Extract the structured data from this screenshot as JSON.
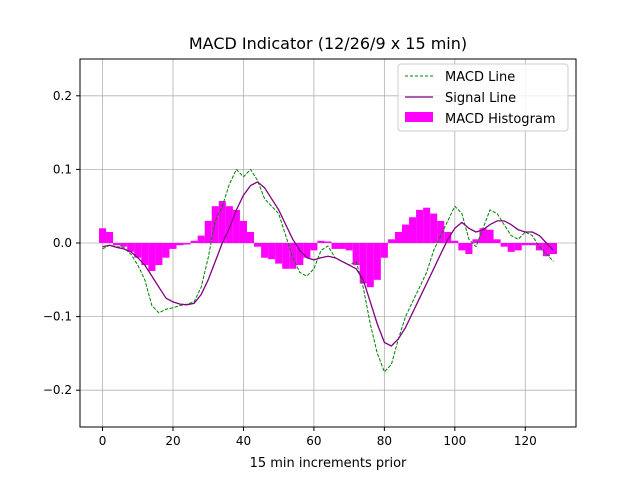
{
  "chart_data": {
    "type": "line",
    "title": "MACD Indicator (12/26/9 x 15 min)",
    "xlabel": "15 min increments prior",
    "ylabel": "",
    "xlim": [
      -6.4,
      134.4
    ],
    "ylim": [
      -0.25,
      0.25
    ],
    "xticks": [
      0,
      20,
      40,
      60,
      80,
      100,
      120
    ],
    "xtick_labels": [
      "0",
      "20",
      "40",
      "60",
      "80",
      "100",
      "120"
    ],
    "yticks": [
      -0.2,
      -0.1,
      0.0,
      0.1,
      0.2
    ],
    "ytick_labels": [
      "−0.2",
      "−0.1",
      "0.0",
      "0.1",
      "0.2"
    ],
    "grid": true,
    "legend_placement": "top-right",
    "x": [
      0,
      2,
      4,
      6,
      8,
      10,
      12,
      14,
      16,
      18,
      20,
      22,
      24,
      26,
      28,
      30,
      32,
      34,
      36,
      38,
      40,
      42,
      44,
      46,
      48,
      50,
      52,
      54,
      56,
      58,
      60,
      62,
      64,
      66,
      68,
      70,
      72,
      74,
      76,
      78,
      80,
      82,
      84,
      86,
      88,
      90,
      92,
      94,
      96,
      98,
      100,
      102,
      104,
      106,
      108,
      110,
      112,
      114,
      116,
      118,
      120,
      122,
      124,
      126,
      128
    ],
    "series": [
      {
        "name": "MACD Line",
        "type": "line",
        "style": "dashed",
        "color": "#008000",
        "values": [
          -0.008,
          -0.003,
          -0.005,
          -0.006,
          -0.015,
          -0.03,
          -0.05,
          -0.085,
          -0.095,
          -0.09,
          -0.088,
          -0.085,
          -0.083,
          -0.08,
          -0.06,
          -0.02,
          0.03,
          0.05,
          0.08,
          0.1,
          0.09,
          0.1,
          0.085,
          0.06,
          0.05,
          0.04,
          0.01,
          -0.02,
          -0.04,
          -0.045,
          -0.035,
          -0.01,
          -0.004,
          -0.02,
          -0.025,
          -0.03,
          -0.025,
          -0.06,
          -0.11,
          -0.15,
          -0.175,
          -0.165,
          -0.13,
          -0.1,
          -0.08,
          -0.06,
          -0.04,
          -0.01,
          0.01,
          0.03,
          0.05,
          0.04,
          0.005,
          -0.005,
          0.02,
          0.045,
          0.04,
          0.025,
          0.01,
          0.005,
          0.015,
          0.01,
          -0.005,
          -0.015,
          -0.025
        ]
      },
      {
        "name": "Signal Line",
        "type": "line",
        "style": "solid",
        "color": "#800080",
        "values": [
          -0.005,
          -0.003,
          -0.006,
          -0.008,
          -0.012,
          -0.02,
          -0.03,
          -0.045,
          -0.06,
          -0.075,
          -0.08,
          -0.083,
          -0.084,
          -0.082,
          -0.07,
          -0.05,
          -0.025,
          0.0,
          0.02,
          0.045,
          0.065,
          0.078,
          0.083,
          0.075,
          0.06,
          0.045,
          0.025,
          0.005,
          -0.01,
          -0.02,
          -0.023,
          -0.02,
          -0.018,
          -0.02,
          -0.025,
          -0.03,
          -0.035,
          -0.05,
          -0.08,
          -0.11,
          -0.135,
          -0.14,
          -0.13,
          -0.115,
          -0.095,
          -0.075,
          -0.055,
          -0.035,
          -0.015,
          0.005,
          0.02,
          0.028,
          0.02,
          0.015,
          0.018,
          0.025,
          0.03,
          0.03,
          0.025,
          0.018,
          0.015,
          0.015,
          0.01,
          0.0,
          -0.01
        ]
      },
      {
        "name": "MACD Histogram",
        "type": "bar",
        "color": "#ff00ff",
        "values": [
          0.02,
          0.015,
          -0.003,
          -0.005,
          -0.012,
          -0.02,
          -0.03,
          -0.038,
          -0.03,
          -0.02,
          -0.008,
          -0.003,
          -0.002,
          0.003,
          0.01,
          0.03,
          0.05,
          0.057,
          0.05,
          0.045,
          0.03,
          0.015,
          -0.005,
          -0.02,
          -0.022,
          -0.028,
          -0.035,
          -0.035,
          -0.03,
          -0.02,
          -0.01,
          0.003,
          0.002,
          -0.008,
          -0.008,
          -0.01,
          -0.03,
          -0.055,
          -0.06,
          -0.05,
          -0.02,
          0.005,
          0.015,
          0.025,
          0.035,
          0.045,
          0.048,
          0.04,
          0.03,
          0.015,
          0.003,
          -0.01,
          -0.015,
          0.005,
          0.02,
          0.018,
          0.005,
          -0.005,
          -0.012,
          -0.01,
          -0.003,
          -0.003,
          -0.01,
          -0.018,
          -0.015
        ]
      }
    ]
  }
}
